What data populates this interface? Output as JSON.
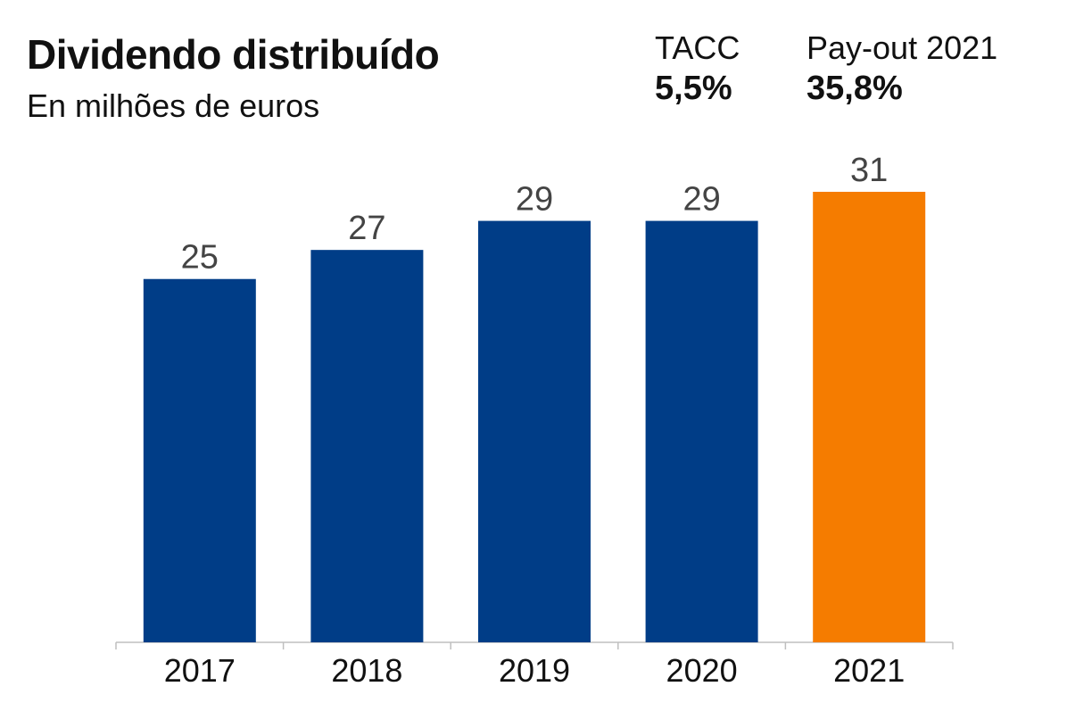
{
  "header": {
    "title": "Dividendo distribuído",
    "subtitle": "En milhões de euros"
  },
  "kpis": {
    "tacc": {
      "label": "TACC",
      "value": "5,5%"
    },
    "payout": {
      "label": "Pay-out 2021",
      "value": "35,8%"
    }
  },
  "colors": {
    "primary_bar": "#003d87",
    "highlight_bar": "#f57c00",
    "axis": "#bfbfbf"
  },
  "chart_data": {
    "type": "bar",
    "title": "Dividendo distribuído",
    "subtitle": "En milhões de euros",
    "categories": [
      "2017",
      "2018",
      "2019",
      "2020",
      "2021"
    ],
    "values": [
      25,
      27,
      29,
      29,
      31
    ],
    "value_labels": [
      "25",
      "27",
      "29",
      "29",
      "31"
    ],
    "highlight_index": 4,
    "xlabel": "",
    "ylabel": "",
    "ylim": [
      0,
      31
    ],
    "grid": false,
    "legend": "none"
  }
}
